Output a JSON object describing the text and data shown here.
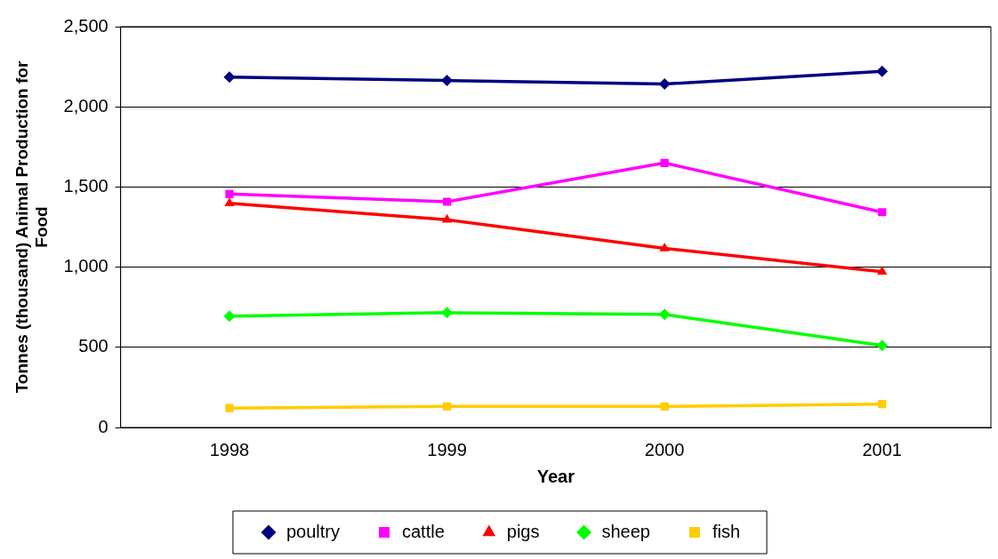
{
  "chart_data": {
    "type": "line",
    "xlabel": "Year",
    "ylabel": "Tonnes (thousand) Animal Production for Food",
    "categories": [
      "1998",
      "1999",
      "2000",
      "2001"
    ],
    "series": [
      {
        "name": "poultry",
        "color": "#000080",
        "marker": "diamond",
        "values": [
          2186,
          2164,
          2142,
          2222
        ]
      },
      {
        "name": "cattle",
        "color": "#ff00ff",
        "marker": "square",
        "values": [
          1456,
          1408,
          1650,
          1343
        ]
      },
      {
        "name": "pigs",
        "color": "#ff0000",
        "marker": "triangle",
        "values": [
          1398,
          1296,
          1117,
          971
        ]
      },
      {
        "name": "sheep",
        "color": "#00ff00",
        "marker": "diamond",
        "values": [
          694,
          716,
          705,
          511
        ]
      },
      {
        "name": "fish",
        "color": "#ffcc00",
        "marker": "square",
        "values": [
          121,
          131,
          131,
          146
        ]
      }
    ],
    "ylim": [
      0,
      2500
    ],
    "yticks": [
      {
        "value": 0,
        "label": "0"
      },
      {
        "value": 500,
        "label": "500"
      },
      {
        "value": 1000,
        "label": "1,000"
      },
      {
        "value": 1500,
        "label": "1,500"
      },
      {
        "value": 2000,
        "label": "2,000"
      },
      {
        "value": 2500,
        "label": "2,500"
      }
    ],
    "grid": "y",
    "legend": "bottom",
    "line_style": "solid"
  }
}
